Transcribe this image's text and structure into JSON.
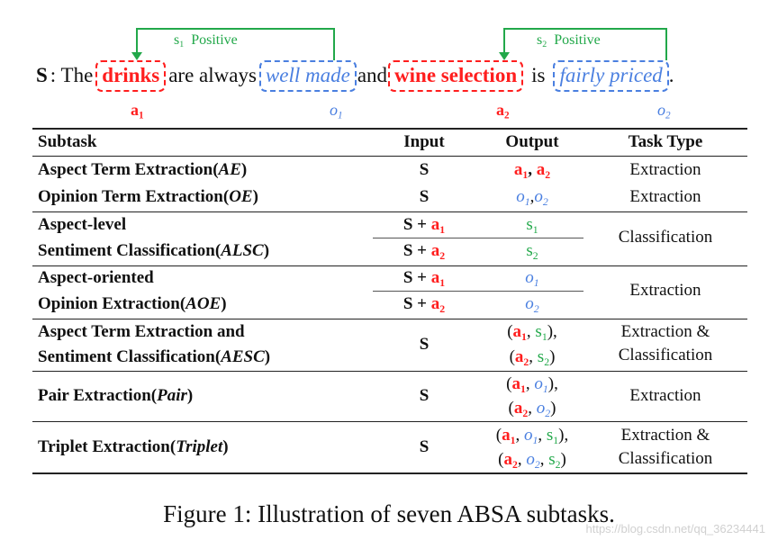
{
  "sentence": {
    "label": "S",
    "colon": ": The",
    "aspect1": "drinks",
    "mid1": "are always",
    "opinion1": "well made",
    "mid2": "and",
    "aspect2": "wine selection",
    "mid3": "is",
    "opinion2": "fairly priced",
    "end": ".",
    "tag_a": "a",
    "tag_o": "o",
    "sub1": "1",
    "sub2": "2",
    "sentiment_s": "s",
    "sentiment_label": "Positive"
  },
  "table": {
    "headers": {
      "subtask": "Subtask",
      "input": "Input",
      "output": "Output",
      "type": "Task Type"
    },
    "rows": {
      "ae": {
        "name": "Aspect Term Extraction(",
        "abbr": "AE",
        "close": ")",
        "input": "S",
        "type": "Extraction"
      },
      "oe": {
        "name": "Opinion Term Extraction(",
        "abbr": "OE",
        "close": ")",
        "input": "S",
        "type": "Extraction"
      },
      "alsc": {
        "name1": "Aspect-level",
        "name2": "Sentiment Classification(",
        "abbr": "ALSC",
        "close": ")",
        "input_prefix": "S + ",
        "type": "Classification"
      },
      "aoe": {
        "name1": "Aspect-oriented",
        "name2": "Opinion Extraction(",
        "abbr": "AOE",
        "close": ")",
        "input_prefix": "S + ",
        "type": "Extraction"
      },
      "aesc": {
        "name1": "Aspect Term Extraction and",
        "name2": "Sentiment Classification(",
        "abbr": "AESC",
        "close": ")",
        "input": "S",
        "type1": "Extraction &",
        "type2": "Classification"
      },
      "pair": {
        "name": "Pair Extraction(",
        "abbr": "Pair",
        "close": ")",
        "input": "S",
        "type": "Extraction"
      },
      "triplet": {
        "name": "Triplet Extraction(",
        "abbr": "Triplet",
        "close": ")",
        "input": "S",
        "type1": "Extraction &",
        "type2": "Classification"
      }
    },
    "punct": {
      "comma": ", ",
      "open": "(",
      "close": ")",
      "close_comma": "),",
      "comma_tight": ","
    }
  },
  "caption": "Figure 1: Illustration of seven ABSA subtasks.",
  "watermark": "https://blog.csdn.net/qq_36234441",
  "colors": {
    "aspect": "#ff1e1e",
    "opinion": "#4a7fe0",
    "sentiment": "#22a84a"
  }
}
